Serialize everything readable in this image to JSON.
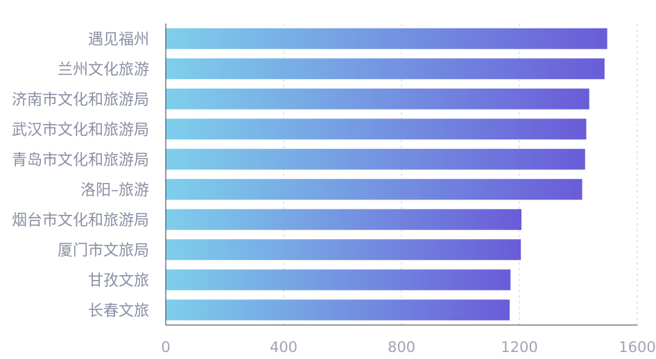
{
  "chart_data": {
    "type": "bar",
    "orientation": "horizontal",
    "categories": [
      "遇见福州",
      "兰州文化旅游",
      "济南市文化和旅游局",
      "武汉市文化和旅游局",
      "青岛市文化和旅游局",
      "洛阳–旅游",
      "烟台市文化和旅游局",
      "厦门市文旅局",
      "甘孜文旅",
      "长春文旅"
    ],
    "values": [
      1498,
      1489,
      1437,
      1427,
      1423,
      1413,
      1207,
      1205,
      1170,
      1167
    ],
    "xlim": [
      0,
      1600
    ],
    "xticks": [
      0,
      400,
      800,
      1200,
      1600
    ],
    "grid": true,
    "colors": {
      "bar_start": "#7ecfeb",
      "bar_end": "#6a5cd8",
      "grid": "#cfd2da",
      "label": "#8a8fa3",
      "tick": "#a1a5b4"
    }
  }
}
